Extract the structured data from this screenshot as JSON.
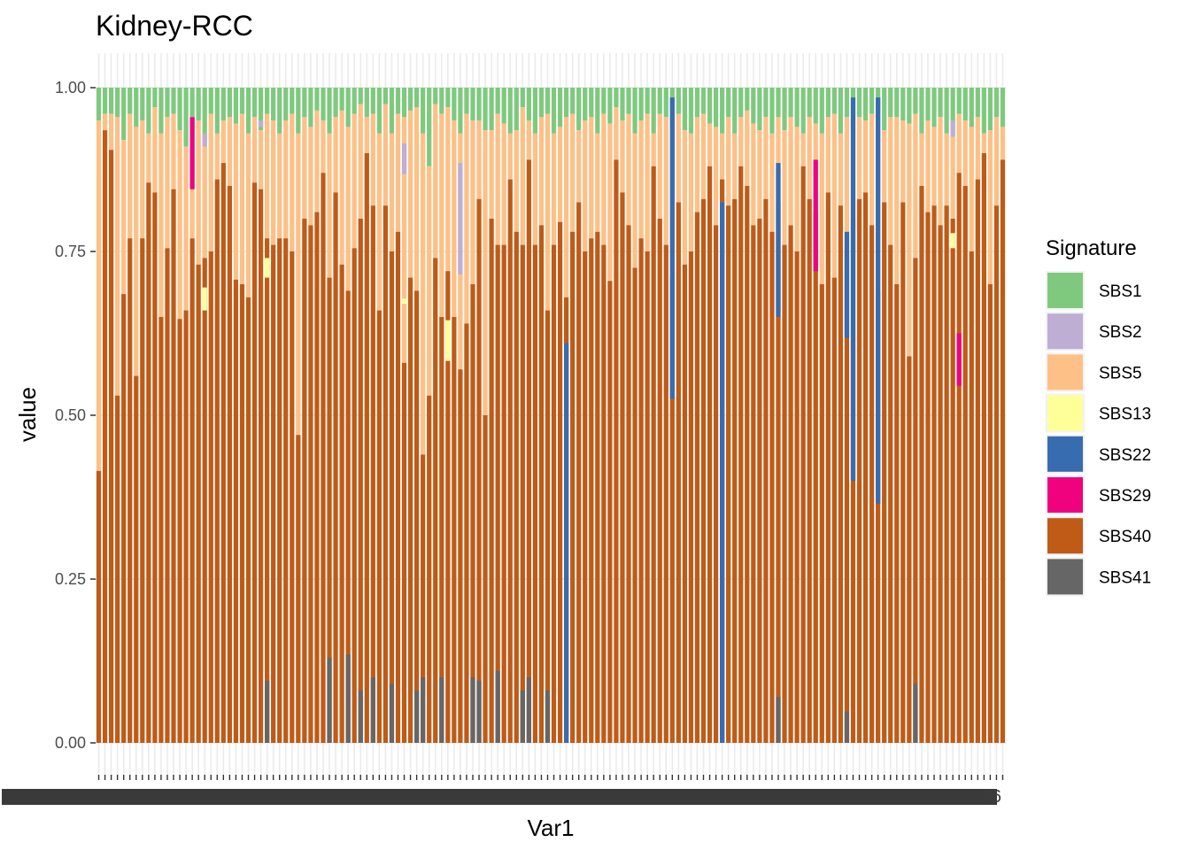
{
  "chart_data": {
    "type": "bar",
    "stacked": true,
    "title": "Kidney-RCC",
    "xlabel": "Var1",
    "ylabel": "value",
    "ylim": [
      0,
      1
    ],
    "yticks": [
      0,
      0.25,
      0.5,
      0.75,
      1
    ],
    "ytick_labels": [
      "0.00",
      "0.25",
      "0.50",
      "0.75",
      "1.00"
    ],
    "x_tick_text_visible": "56",
    "legend": {
      "title": "Signature",
      "position": "right"
    },
    "grid": true,
    "n_samples": 146,
    "series": [
      {
        "name": "SBS1",
        "color": "#7FC97F"
      },
      {
        "name": "SBS2",
        "color": "#BEAED4"
      },
      {
        "name": "SBS5",
        "color": "#FDC086"
      },
      {
        "name": "SBS13",
        "color": "#FFFF99"
      },
      {
        "name": "SBS22",
        "color": "#386CB0"
      },
      {
        "name": "SBS29",
        "color": "#F0027F"
      },
      {
        "name": "SBS40",
        "color": "#BF5B17"
      },
      {
        "name": "SBS41",
        "color": "#666666"
      }
    ],
    "sbs40_values": [
      0.415,
      0.935,
      0.905,
      0.53,
      0.685,
      0.77,
      0.56,
      0.77,
      0.855,
      0.84,
      0.65,
      0.755,
      0.845,
      0.647,
      0.66,
      0.77,
      0.73,
      0.74,
      0.75,
      0.86,
      0.885,
      0.85,
      0.707,
      0.7,
      0.68,
      0.855,
      0.845,
      0.77,
      0.76,
      0.77,
      0.77,
      0.75,
      0.47,
      0.8,
      0.79,
      0.81,
      0.87,
      0.71,
      0.84,
      0.73,
      0.69,
      0.755,
      0.8,
      0.9,
      0.82,
      0.66,
      0.82,
      0.75,
      0.78,
      0.58,
      0.71,
      0.69,
      0.44,
      0.53,
      0.74,
      0.65,
      0.72,
      0.65,
      0.57,
      0.64,
      0.7,
      0.83,
      0.5,
      0.8,
      0.76,
      0.76,
      0.86,
      0.78,
      0.76,
      0.89,
      0.76,
      0.79,
      0.66,
      0.76,
      0.795,
      0.68,
      0.78,
      0.825,
      0.75,
      0.77,
      0.78,
      0.76,
      0.705,
      0.89,
      0.84,
      0.79,
      0.725,
      0.77,
      0.75,
      0.88,
      0.8,
      0.76,
      0.71,
      0.825,
      0.73,
      0.75,
      0.81,
      0.83,
      0.88,
      0.79,
      0.86,
      0.82,
      0.83,
      0.88,
      0.85,
      0.79,
      0.8,
      0.83,
      0.78,
      0.825,
      0.76,
      0.79,
      0.75,
      0.88,
      0.83,
      0.81,
      0.7,
      0.84,
      0.71,
      0.82,
      0.75,
      0.8,
      0.83,
      0.84,
      0.79,
      0.69,
      0.825,
      0.76,
      0.7,
      0.825,
      0.59,
      0.74,
      0.85,
      0.81,
      0.82,
      0.79,
      0.82,
      0.8,
      0.87,
      0.85,
      0.75,
      0.86,
      0.9,
      0.7,
      0.82,
      0.89
    ],
    "sbs5_top": [
      0.95,
      0.96,
      0.96,
      0.955,
      0.92,
      0.96,
      0.94,
      0.95,
      0.93,
      0.97,
      0.93,
      0.955,
      0.96,
      0.935,
      0.91,
      0.94,
      0.95,
      0.92,
      0.96,
      0.93,
      0.95,
      0.955,
      0.945,
      0.96,
      0.93,
      0.955,
      0.935,
      0.96,
      0.95,
      0.93,
      0.95,
      0.96,
      0.93,
      0.955,
      0.94,
      0.965,
      0.95,
      0.93,
      0.955,
      0.965,
      0.94,
      0.96,
      0.975,
      0.955,
      0.96,
      0.93,
      0.975,
      0.93,
      0.96,
      0.955,
      0.965,
      0.97,
      0.93,
      0.88,
      0.975,
      0.96,
      0.97,
      0.95,
      0.93,
      0.96,
      0.95,
      0.95,
      0.935,
      0.935,
      0.96,
      0.945,
      0.93,
      0.935,
      0.97,
      0.95,
      0.93,
      0.955,
      0.96,
      0.93,
      0.94,
      0.955,
      0.96,
      0.935,
      0.95,
      0.955,
      0.93,
      0.96,
      0.945,
      0.97,
      0.95,
      0.96,
      0.93,
      0.95,
      0.96,
      0.93,
      0.96,
      0.955,
      0.94,
      0.96,
      0.935,
      0.93,
      0.955,
      0.96,
      0.945,
      0.94,
      0.93,
      0.955,
      0.93,
      0.955,
      0.965,
      0.945,
      0.935,
      0.955,
      0.93,
      0.955,
      0.935,
      0.955,
      0.94,
      0.93,
      0.955,
      0.945,
      0.93,
      0.955,
      0.96,
      0.93,
      0.955,
      0.935,
      0.955,
      0.95,
      0.96,
      0.945,
      0.935,
      0.955,
      0.955,
      0.95,
      0.945,
      0.96,
      0.93,
      0.95,
      0.94,
      0.955,
      0.93,
      0.945,
      0.96,
      0.95,
      0.94,
      0.955,
      0.93,
      0.935,
      0.955,
      0.94
    ],
    "sbs41_bars": {
      "27": 0.095,
      "37": 0.13,
      "40": 0.135,
      "42": 0.08,
      "44": 0.1,
      "47": 0.09,
      "51": 0.08,
      "52": 0.1,
      "55": 0.1,
      "60": 0.1,
      "61": 0.095,
      "64": 0.11,
      "68": 0.08,
      "69": 0.1,
      "72": 0.08,
      "109": 0.07,
      "120": 0.048,
      "131": 0.09
    },
    "sbs22_bars": {
      "75": [
        0,
        0.61
      ],
      "92": [
        0.525,
        0.985
      ],
      "100": [
        0,
        0.825
      ],
      "109": [
        0.65,
        0.885
      ],
      "120": [
        0.618,
        0.78
      ],
      "121": [
        0.4,
        0.985
      ],
      "125": [
        0.365,
        0.985
      ]
    },
    "sbs29_bars": {
      "15": [
        0.845,
        0.955
      ],
      "115": [
        0.72,
        0.89
      ],
      "138": [
        0.545,
        0.625
      ]
    },
    "sbs13_bars": {
      "17": [
        0.66,
        0.695
      ],
      "27": [
        0.71,
        0.74
      ],
      "49": [
        0.67,
        0.678
      ],
      "56": [
        0.583,
        0.645
      ],
      "137": [
        0.755,
        0.778
      ]
    },
    "sbs2_bars": {
      "17": [
        0.91,
        0.93
      ],
      "26": [
        0.94,
        0.95
      ],
      "49": [
        0.868,
        0.915
      ],
      "58": [
        0.715,
        0.885
      ],
      "137": [
        0.925,
        0.95
      ]
    }
  }
}
